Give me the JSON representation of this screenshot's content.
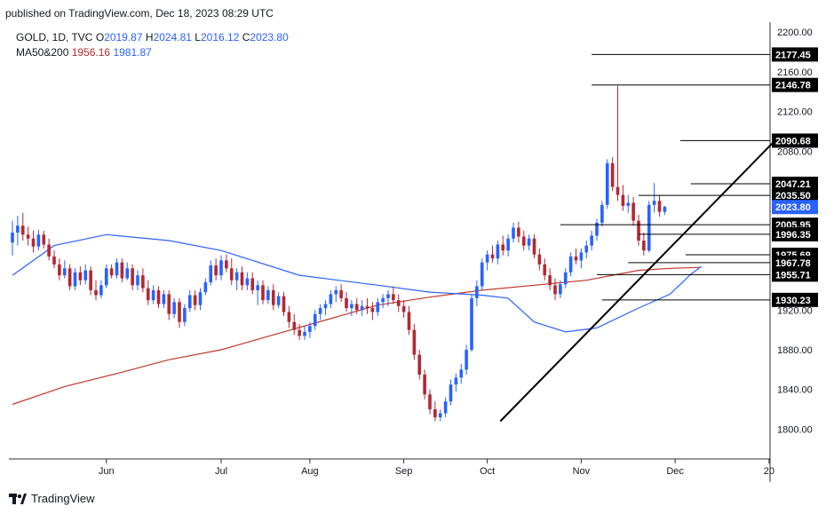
{
  "header": {
    "published": "published on TradingView.com, Dec 18, 2023 08:29 UTC"
  },
  "legend": {
    "symbol": "GOLD, 1D, TVC",
    "o_label": "O",
    "o": "2019.87",
    "h_label": "H",
    "h": "2024.81",
    "l_label": "L",
    "l": "2016.12",
    "c_label": "C",
    "c": "2023.80",
    "ma_label": "MA50&200",
    "ma50": "1956.16",
    "ma200": "1981.87"
  },
  "footer": {
    "brand": "TradingView"
  },
  "colors": {
    "up": "#2962ff",
    "down": "#b22833",
    "ma50": "#2962ff",
    "ma200": "#c0392b",
    "level": "#000000",
    "last_price_bg": "#2962ff"
  },
  "chart_data": {
    "type": "candlestick",
    "symbol": "GOLD",
    "interval": "1D",
    "x_ticks": [
      "Jun",
      "Jul",
      "Aug",
      "Sep",
      "Oct",
      "Nov",
      "Dec",
      "20"
    ],
    "y_ticks": [
      1800,
      1840,
      1880,
      1920,
      1960,
      2000,
      2040,
      2080,
      2120,
      2160,
      2200
    ],
    "ylim": [
      1770,
      2210
    ],
    "n_bars": 145,
    "x_tick_bar_index": [
      18,
      40,
      57,
      75,
      91,
      109,
      127,
      145
    ],
    "candles": [
      [
        1988,
        2010,
        1975,
        1998
      ],
      [
        1998,
        2015,
        1985,
        2005
      ],
      [
        2005,
        2018,
        1990,
        1996
      ],
      [
        1996,
        2004,
        1985,
        1992
      ],
      [
        1992,
        2000,
        1978,
        1984
      ],
      [
        1984,
        2001,
        1980,
        1996
      ],
      [
        1996,
        2000,
        1982,
        1986
      ],
      [
        1986,
        1992,
        1970,
        1974
      ],
      [
        1974,
        1980,
        1962,
        1966
      ],
      [
        1966,
        1972,
        1950,
        1955
      ],
      [
        1955,
        1970,
        1952,
        1962
      ],
      [
        1962,
        1966,
        1940,
        1944
      ],
      [
        1944,
        1962,
        1940,
        1958
      ],
      [
        1958,
        1964,
        1945,
        1950
      ],
      [
        1950,
        1966,
        1946,
        1960
      ],
      [
        1960,
        1964,
        1935,
        1940
      ],
      [
        1940,
        1950,
        1930,
        1935
      ],
      [
        1935,
        1950,
        1932,
        1945
      ],
      [
        1945,
        1966,
        1942,
        1962
      ],
      [
        1962,
        1966,
        1952,
        1955
      ],
      [
        1955,
        1972,
        1952,
        1968
      ],
      [
        1968,
        1972,
        1948,
        1952
      ],
      [
        1952,
        1968,
        1950,
        1962
      ],
      [
        1962,
        1966,
        1940,
        1945
      ],
      [
        1945,
        1960,
        1940,
        1955
      ],
      [
        1955,
        1962,
        1938,
        1942
      ],
      [
        1942,
        1950,
        1925,
        1930
      ],
      [
        1930,
        1945,
        1926,
        1940
      ],
      [
        1940,
        1944,
        1922,
        1926
      ],
      [
        1926,
        1940,
        1922,
        1936
      ],
      [
        1936,
        1940,
        1910,
        1916
      ],
      [
        1916,
        1932,
        1912,
        1928
      ],
      [
        1928,
        1932,
        1902,
        1908
      ],
      [
        1908,
        1926,
        1904,
        1922
      ],
      [
        1922,
        1940,
        1918,
        1935
      ],
      [
        1935,
        1940,
        1920,
        1925
      ],
      [
        1925,
        1942,
        1920,
        1938
      ],
      [
        1938,
        1952,
        1935,
        1948
      ],
      [
        1948,
        1970,
        1945,
        1965
      ],
      [
        1965,
        1972,
        1950,
        1955
      ],
      [
        1955,
        1975,
        1950,
        1970
      ],
      [
        1970,
        1976,
        1958,
        1962
      ],
      [
        1962,
        1972,
        1945,
        1950
      ],
      [
        1950,
        1962,
        1940,
        1958
      ],
      [
        1958,
        1964,
        1940,
        1945
      ],
      [
        1945,
        1958,
        1940,
        1952
      ],
      [
        1952,
        1958,
        1936,
        1940
      ],
      [
        1940,
        1950,
        1925,
        1945
      ],
      [
        1945,
        1950,
        1926,
        1930
      ],
      [
        1930,
        1944,
        1926,
        1940
      ],
      [
        1940,
        1946,
        1920,
        1925
      ],
      [
        1925,
        1938,
        1922,
        1934
      ],
      [
        1934,
        1938,
        1914,
        1918
      ],
      [
        1918,
        1924,
        1902,
        1908
      ],
      [
        1908,
        1916,
        1895,
        1900
      ],
      [
        1900,
        1906,
        1890,
        1894
      ],
      [
        1894,
        1904,
        1890,
        1898
      ],
      [
        1898,
        1908,
        1892,
        1904
      ],
      [
        1904,
        1920,
        1900,
        1916
      ],
      [
        1916,
        1926,
        1910,
        1922
      ],
      [
        1922,
        1930,
        1915,
        1926
      ],
      [
        1926,
        1940,
        1922,
        1936
      ],
      [
        1936,
        1944,
        1928,
        1940
      ],
      [
        1940,
        1946,
        1928,
        1932
      ],
      [
        1932,
        1938,
        1918,
        1922
      ],
      [
        1922,
        1930,
        1914,
        1926
      ],
      [
        1926,
        1932,
        1916,
        1920
      ],
      [
        1920,
        1930,
        1914,
        1924
      ],
      [
        1924,
        1932,
        1916,
        1922
      ],
      [
        1922,
        1928,
        1910,
        1918
      ],
      [
        1918,
        1932,
        1914,
        1928
      ],
      [
        1928,
        1936,
        1922,
        1932
      ],
      [
        1932,
        1940,
        1924,
        1936
      ],
      [
        1936,
        1944,
        1926,
        1930
      ],
      [
        1930,
        1936,
        1918,
        1924
      ],
      [
        1924,
        1930,
        1912,
        1918
      ],
      [
        1918,
        1924,
        1895,
        1900
      ],
      [
        1900,
        1906,
        1870,
        1875
      ],
      [
        1875,
        1880,
        1850,
        1855
      ],
      [
        1855,
        1860,
        1830,
        1835
      ],
      [
        1835,
        1840,
        1815,
        1820
      ],
      [
        1820,
        1828,
        1808,
        1812
      ],
      [
        1812,
        1820,
        1808,
        1816
      ],
      [
        1816,
        1832,
        1812,
        1828
      ],
      [
        1828,
        1850,
        1824,
        1845
      ],
      [
        1845,
        1856,
        1838,
        1852
      ],
      [
        1852,
        1866,
        1846,
        1860
      ],
      [
        1860,
        1885,
        1855,
        1880
      ],
      [
        1880,
        1935,
        1878,
        1932
      ],
      [
        1932,
        1950,
        1924,
        1944
      ],
      [
        1944,
        1972,
        1940,
        1968
      ],
      [
        1968,
        1980,
        1960,
        1976
      ],
      [
        1976,
        1985,
        1968,
        1972
      ],
      [
        1972,
        1990,
        1966,
        1986
      ],
      [
        1986,
        1995,
        1975,
        1980
      ],
      [
        1980,
        1996,
        1974,
        1992
      ],
      [
        1992,
        2008,
        1988,
        2003
      ],
      [
        2003,
        2009,
        1988,
        1994
      ],
      [
        1994,
        2000,
        1980,
        1985
      ],
      [
        1985,
        1996,
        1980,
        1992
      ],
      [
        1992,
        1996,
        1972,
        1976
      ],
      [
        1976,
        1982,
        1960,
        1966
      ],
      [
        1966,
        1972,
        1950,
        1955
      ],
      [
        1955,
        1962,
        1940,
        1945
      ],
      [
        1945,
        1952,
        1930,
        1936
      ],
      [
        1936,
        1950,
        1932,
        1946
      ],
      [
        1946,
        1962,
        1942,
        1958
      ],
      [
        1958,
        1978,
        1954,
        1974
      ],
      [
        1974,
        1982,
        1966,
        1970
      ],
      [
        1970,
        1982,
        1962,
        1978
      ],
      [
        1978,
        1990,
        1972,
        1985
      ],
      [
        1985,
        2000,
        1980,
        1995
      ],
      [
        1995,
        2012,
        1990,
        2008
      ],
      [
        2008,
        2030,
        2004,
        2026
      ],
      [
        2026,
        2072,
        2022,
        2068
      ],
      [
        2068,
        2074,
        2040,
        2044
      ],
      [
        2044,
        2146,
        2030,
        2036
      ],
      [
        2036,
        2046,
        2020,
        2025
      ],
      [
        2025,
        2036,
        2018,
        2028
      ],
      [
        2028,
        2034,
        2005,
        2010
      ],
      [
        2010,
        2016,
        1985,
        1990
      ],
      [
        1990,
        1998,
        1975,
        1980
      ],
      [
        1980,
        2030,
        1978,
        2026
      ],
      [
        2026,
        2048,
        2018,
        2030
      ],
      [
        2030,
        2036,
        2014,
        2019
      ],
      [
        2019,
        2025,
        2016,
        2024
      ]
    ],
    "ma50": [
      [
        0,
        1955
      ],
      [
        8,
        1985
      ],
      [
        18,
        1996
      ],
      [
        30,
        1990
      ],
      [
        40,
        1980
      ],
      [
        55,
        1955
      ],
      [
        70,
        1945
      ],
      [
        80,
        1938
      ],
      [
        90,
        1935
      ],
      [
        95,
        1932
      ],
      [
        100,
        1908
      ],
      [
        106,
        1898
      ],
      [
        112,
        1902
      ],
      [
        120,
        1922
      ],
      [
        126,
        1936
      ],
      [
        130,
        1956
      ],
      [
        132,
        1964
      ]
    ],
    "ma200": [
      [
        0,
        1825
      ],
      [
        10,
        1843
      ],
      [
        20,
        1856
      ],
      [
        30,
        1870
      ],
      [
        40,
        1880
      ],
      [
        50,
        1895
      ],
      [
        60,
        1910
      ],
      [
        70,
        1925
      ],
      [
        80,
        1933
      ],
      [
        90,
        1940
      ],
      [
        100,
        1945
      ],
      [
        110,
        1950
      ],
      [
        120,
        1960
      ],
      [
        126,
        1962
      ],
      [
        132,
        1963
      ]
    ],
    "levels": [
      {
        "label": "2177.45",
        "value": 2177.45,
        "x0": 111
      },
      {
        "label": "2146.78",
        "value": 2146.78,
        "x0": 111
      },
      {
        "label": "2090.68",
        "value": 2090.68,
        "x0": 128
      },
      {
        "label": "2047.21",
        "value": 2047.21,
        "x0": 130
      },
      {
        "label": "2035.50",
        "value": 2035.5,
        "x0": 120
      },
      {
        "label": "2005.95",
        "value": 2005.95,
        "x0": 105
      },
      {
        "label": "1996.35",
        "value": 1996.35,
        "x0": 120
      },
      {
        "label": "1975.69",
        "value": 1975.69,
        "x0": 129
      },
      {
        "label": "1967.78",
        "value": 1967.78,
        "x0": 118
      },
      {
        "label": "1955.71",
        "value": 1955.71,
        "x0": 112
      },
      {
        "label": "1930.23",
        "value": 1930.23,
        "x0": 113
      }
    ],
    "last_price": {
      "label": "2023.80",
      "value": 2023.8
    },
    "trendline": [
      [
        93.5,
        1808
      ],
      [
        146,
        2090
      ]
    ]
  }
}
